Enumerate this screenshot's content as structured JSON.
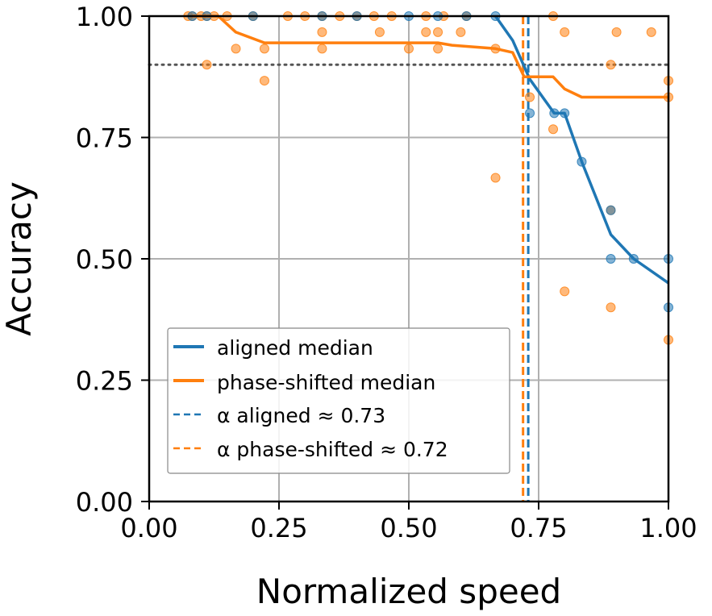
{
  "chart_data": {
    "type": "scatter",
    "xlabel": "Normalized speed",
    "ylabel": "Accuracy",
    "xlim": [
      0,
      1
    ],
    "ylim": [
      0,
      1
    ],
    "xticks": [
      "0.00",
      "0.25",
      "0.50",
      "0.75",
      "1.00"
    ],
    "yticks": [
      "0.00",
      "0.25",
      "0.50",
      "0.75",
      "1.00"
    ],
    "grid": true,
    "legend_position": "lower-left",
    "threshold_line": {
      "y": 0.9,
      "style": "dotted",
      "color": "#555555"
    },
    "colors": {
      "aligned": "#1f77b4",
      "phase_shifted": "#ff7f0e",
      "grid": "#b0b0b0"
    },
    "series": [
      {
        "name": "aligned median",
        "kind": "line",
        "color": "#1f77b4",
        "x": [
          0.667,
          0.7,
          0.733,
          0.78,
          0.8,
          0.833,
          0.889,
          0.933,
          1.0
        ],
        "y": [
          1.0,
          0.95,
          0.87,
          0.8,
          0.8,
          0.7,
          0.55,
          0.5,
          0.45
        ]
      },
      {
        "name": "phase-shifted median",
        "kind": "line",
        "color": "#ff7f0e",
        "x": [
          0.083,
          0.133,
          0.167,
          0.222,
          0.333,
          0.444,
          0.556,
          0.583,
          0.667,
          0.7,
          0.722,
          0.733,
          0.778,
          0.8,
          0.833,
          0.889,
          1.0
        ],
        "y": [
          1.0,
          1.0,
          0.967,
          0.945,
          0.945,
          0.945,
          0.945,
          0.94,
          0.933,
          0.925,
          0.875,
          0.875,
          0.875,
          0.85,
          0.833,
          0.833,
          0.833
        ]
      },
      {
        "name": "α aligned ≈ 0.73",
        "kind": "vline",
        "color": "#1f77b4",
        "x": 0.73
      },
      {
        "name": "α phase-shifted ≈ 0.72",
        "kind": "vline",
        "color": "#ff7f0e",
        "x": 0.72
      }
    ],
    "scatter_aligned": {
      "color": "#1f77b4",
      "points": [
        [
          0.083,
          1.0
        ],
        [
          0.111,
          1.0
        ],
        [
          0.2,
          1.0
        ],
        [
          0.333,
          1.0
        ],
        [
          0.4,
          1.0
        ],
        [
          0.5,
          1.0
        ],
        [
          0.556,
          1.0
        ],
        [
          0.611,
          1.0
        ],
        [
          0.667,
          1.0
        ],
        [
          0.733,
          0.8
        ],
        [
          0.78,
          0.8
        ],
        [
          0.8,
          0.8
        ],
        [
          0.833,
          0.7
        ],
        [
          0.889,
          0.6
        ],
        [
          0.889,
          0.5
        ],
        [
          0.933,
          0.5
        ],
        [
          1.0,
          0.5
        ],
        [
          1.0,
          0.4
        ]
      ]
    },
    "scatter_phase_shifted": {
      "color": "#ff7f0e",
      "points": [
        [
          0.075,
          1.0
        ],
        [
          0.083,
          1.0
        ],
        [
          0.1,
          1.0
        ],
        [
          0.111,
          1.0
        ],
        [
          0.125,
          1.0
        ],
        [
          0.15,
          1.0
        ],
        [
          0.2,
          1.0
        ],
        [
          0.267,
          1.0
        ],
        [
          0.3,
          1.0
        ],
        [
          0.333,
          1.0
        ],
        [
          0.367,
          1.0
        ],
        [
          0.4,
          1.0
        ],
        [
          0.433,
          1.0
        ],
        [
          0.467,
          1.0
        ],
        [
          0.533,
          1.0
        ],
        [
          0.567,
          1.0
        ],
        [
          0.611,
          1.0
        ],
        [
          0.778,
          1.0
        ],
        [
          0.111,
          0.9
        ],
        [
          0.167,
          0.933
        ],
        [
          0.222,
          0.933
        ],
        [
          0.333,
          0.933
        ],
        [
          0.5,
          0.933
        ],
        [
          0.556,
          0.933
        ],
        [
          0.667,
          0.933
        ],
        [
          0.333,
          0.967
        ],
        [
          0.444,
          0.967
        ],
        [
          0.533,
          0.967
        ],
        [
          0.556,
          0.967
        ],
        [
          0.6,
          0.967
        ],
        [
          0.8,
          0.967
        ],
        [
          0.9,
          0.967
        ],
        [
          0.967,
          0.967
        ],
        [
          0.222,
          0.867
        ],
        [
          0.733,
          0.833
        ],
        [
          0.778,
          0.767
        ],
        [
          0.667,
          0.667
        ],
        [
          0.889,
          0.9
        ],
        [
          0.889,
          0.6
        ],
        [
          0.8,
          0.433
        ],
        [
          0.889,
          0.4
        ],
        [
          1.0,
          0.867
        ],
        [
          1.0,
          0.833
        ],
        [
          1.0,
          0.333
        ]
      ]
    }
  }
}
